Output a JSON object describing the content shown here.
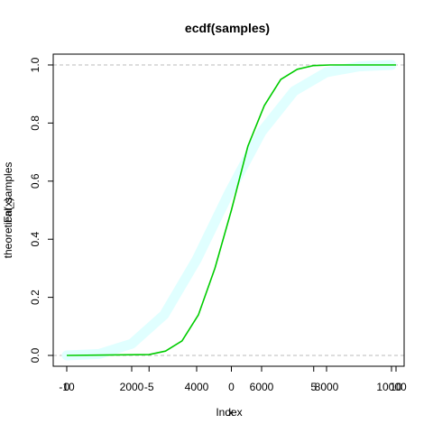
{
  "chart_data": {
    "type": "line",
    "title": "ecdf(samples)",
    "xlabel": "Index",
    "xlabel_overlay": "x",
    "ylabel": "Fn(x)",
    "ylabel_overlay": "theoretical_samples",
    "ylim": [
      0,
      1
    ],
    "y_ticks": [
      "0.0",
      "0.2",
      "0.4",
      "0.6",
      "0.8",
      "1.0"
    ],
    "x_axis_primary": {
      "lim": [
        -10,
        10
      ],
      "ticks": [
        -10,
        -5,
        0,
        5,
        10
      ],
      "tick_labels": [
        "-10",
        "-5",
        "0",
        "5",
        "10"
      ]
    },
    "x_axis_secondary": {
      "lim": [
        0,
        10000
      ],
      "ticks": [
        0,
        2000,
        4000,
        6000,
        8000,
        10000
      ],
      "tick_labels": [
        "0",
        "2000",
        "4000",
        "6000",
        "8000",
        "10000"
      ]
    },
    "reference_lines_y": [
      0,
      1
    ],
    "grid": false,
    "series": [
      {
        "color": "#00CC00",
        "x": [
          -10,
          -5,
          -4,
          -3,
          -2,
          -1,
          0,
          1,
          2,
          3,
          4,
          5,
          6,
          7,
          10
        ],
        "y": [
          0.0,
          0.003,
          0.015,
          0.05,
          0.14,
          0.3,
          0.5,
          0.72,
          0.86,
          0.95,
          0.985,
          0.998,
          1.0,
          1.0,
          1.0
        ]
      },
      {
        "color": "#E0FFFF",
        "x": [
          0,
          1000,
          2000,
          3000,
          4000,
          5000,
          6000,
          7000,
          8000,
          9000,
          10000
        ],
        "y": [
          0.0,
          0.005,
          0.04,
          0.14,
          0.33,
          0.56,
          0.77,
          0.91,
          0.975,
          0.995,
          1.0
        ]
      }
    ]
  }
}
